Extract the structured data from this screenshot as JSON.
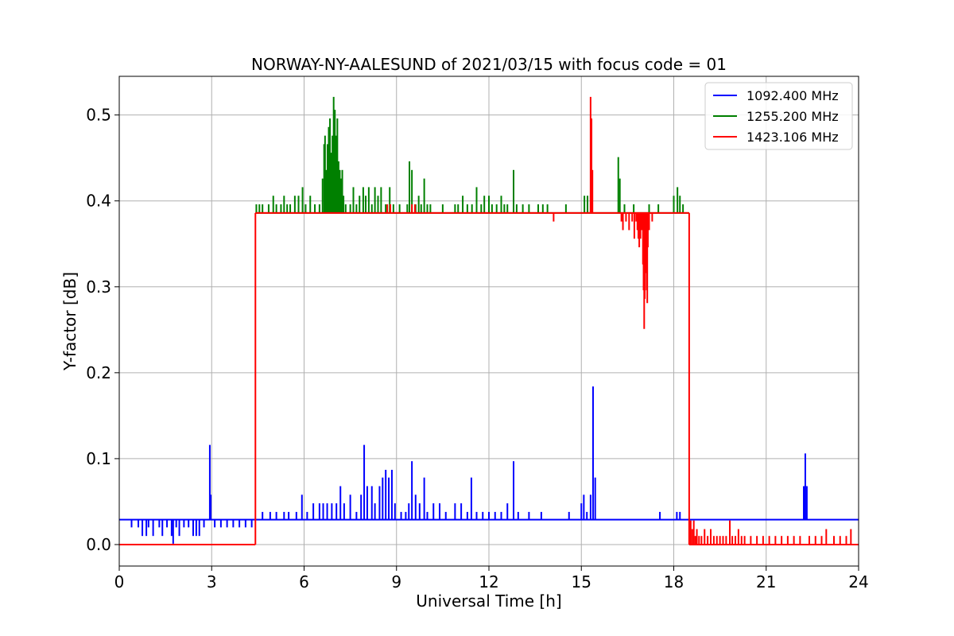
{
  "chart_data": {
    "type": "line",
    "title": "NORWAY-NY-AALESUND of 2021/03/15 with focus code = 01",
    "xlabel": "Universal Time [h]",
    "ylabel": "Y-factor [dB]",
    "xlim": [
      0,
      24
    ],
    "ylim": [
      -0.025,
      0.545
    ],
    "xticks": [
      0,
      3,
      6,
      9,
      12,
      15,
      18,
      21,
      24
    ],
    "xtick_labels": [
      "0",
      "3",
      "6",
      "9",
      "12",
      "15",
      "18",
      "21",
      "24"
    ],
    "yticks": [
      0.0,
      0.1,
      0.2,
      0.3,
      0.4,
      0.5
    ],
    "ytick_labels": [
      "0.0",
      "0.1",
      "0.2",
      "0.3",
      "0.4",
      "0.5"
    ],
    "grid": true,
    "legend_position": "top-right",
    "series": [
      {
        "name": "1092.400 MHz",
        "color": "#0000ff",
        "baseline": 0.029,
        "baseline_segments": [
          [
            0.0,
            4.42
          ],
          [
            4.42,
            24.0
          ]
        ],
        "baseline_values": [
          0.029,
          0.029
        ],
        "spikes": [
          [
            0.4,
            0.02
          ],
          [
            0.62,
            0.02
          ],
          [
            0.75,
            0.01
          ],
          [
            0.88,
            0.01
          ],
          [
            0.95,
            0.02
          ],
          [
            1.1,
            0.01
          ],
          [
            1.3,
            0.02
          ],
          [
            1.4,
            0.01
          ],
          [
            1.55,
            0.02
          ],
          [
            1.7,
            0.01
          ],
          [
            1.75,
            0.001
          ],
          [
            1.85,
            0.02
          ],
          [
            1.95,
            0.01
          ],
          [
            2.1,
            0.02
          ],
          [
            2.25,
            0.02
          ],
          [
            2.4,
            0.01
          ],
          [
            2.5,
            0.01
          ],
          [
            2.6,
            0.01
          ],
          [
            2.75,
            0.02
          ],
          [
            2.94,
            0.116
          ],
          [
            2.97,
            0.058
          ],
          [
            3.1,
            0.02
          ],
          [
            3.3,
            0.02
          ],
          [
            3.5,
            0.02
          ],
          [
            3.7,
            0.02
          ],
          [
            3.9,
            0.02
          ],
          [
            4.1,
            0.02
          ],
          [
            4.3,
            0.02
          ],
          [
            4.65,
            0.038
          ],
          [
            4.9,
            0.038
          ],
          [
            5.1,
            0.038
          ],
          [
            5.35,
            0.038
          ],
          [
            5.5,
            0.038
          ],
          [
            5.75,
            0.038
          ],
          [
            5.93,
            0.058
          ],
          [
            6.1,
            0.038
          ],
          [
            6.3,
            0.048
          ],
          [
            6.5,
            0.048
          ],
          [
            6.62,
            0.048
          ],
          [
            6.75,
            0.048
          ],
          [
            6.9,
            0.048
          ],
          [
            7.05,
            0.048
          ],
          [
            7.18,
            0.068
          ],
          [
            7.3,
            0.048
          ],
          [
            7.5,
            0.058
          ],
          [
            7.7,
            0.038
          ],
          [
            7.85,
            0.058
          ],
          [
            7.95,
            0.116
          ],
          [
            8.05,
            0.068
          ],
          [
            8.2,
            0.068
          ],
          [
            8.3,
            0.048
          ],
          [
            8.45,
            0.068
          ],
          [
            8.55,
            0.078
          ],
          [
            8.65,
            0.087
          ],
          [
            8.75,
            0.078
          ],
          [
            8.85,
            0.087
          ],
          [
            8.95,
            0.048
          ],
          [
            9.15,
            0.038
          ],
          [
            9.3,
            0.038
          ],
          [
            9.4,
            0.048
          ],
          [
            9.5,
            0.097
          ],
          [
            9.62,
            0.058
          ],
          [
            9.75,
            0.048
          ],
          [
            9.9,
            0.078
          ],
          [
            10.0,
            0.038
          ],
          [
            10.2,
            0.048
          ],
          [
            10.4,
            0.048
          ],
          [
            10.6,
            0.038
          ],
          [
            10.9,
            0.048
          ],
          [
            11.1,
            0.048
          ],
          [
            11.3,
            0.038
          ],
          [
            11.43,
            0.078
          ],
          [
            11.6,
            0.038
          ],
          [
            11.8,
            0.038
          ],
          [
            12.0,
            0.038
          ],
          [
            12.2,
            0.038
          ],
          [
            12.4,
            0.038
          ],
          [
            12.6,
            0.048
          ],
          [
            12.8,
            0.097
          ],
          [
            12.95,
            0.038
          ],
          [
            13.3,
            0.038
          ],
          [
            13.7,
            0.038
          ],
          [
            14.6,
            0.038
          ],
          [
            15.0,
            0.048
          ],
          [
            15.08,
            0.058
          ],
          [
            15.18,
            0.038
          ],
          [
            15.3,
            0.058
          ],
          [
            15.38,
            0.184
          ],
          [
            15.45,
            0.078
          ],
          [
            17.55,
            0.038
          ],
          [
            18.1,
            0.038
          ],
          [
            18.2,
            0.038
          ],
          [
            22.22,
            0.068
          ],
          [
            22.27,
            0.106
          ],
          [
            22.32,
            0.068
          ]
        ]
      },
      {
        "name": "1255.200 MHz",
        "color": "#008000",
        "baseline": 0.386,
        "baseline_segments": [
          [
            4.42,
            18.5
          ]
        ],
        "baseline_values": [
          0.386
        ],
        "spikes": [
          [
            4.45,
            0.396
          ],
          [
            4.55,
            0.396
          ],
          [
            4.65,
            0.396
          ],
          [
            4.85,
            0.396
          ],
          [
            5.0,
            0.406
          ],
          [
            5.1,
            0.396
          ],
          [
            5.25,
            0.396
          ],
          [
            5.35,
            0.406
          ],
          [
            5.45,
            0.396
          ],
          [
            5.55,
            0.396
          ],
          [
            5.7,
            0.406
          ],
          [
            5.82,
            0.406
          ],
          [
            5.95,
            0.416
          ],
          [
            6.05,
            0.396
          ],
          [
            6.2,
            0.406
          ],
          [
            6.35,
            0.396
          ],
          [
            6.5,
            0.396
          ],
          [
            6.6,
            0.426
          ],
          [
            6.65,
            0.466
          ],
          [
            6.68,
            0.476
          ],
          [
            6.72,
            0.436
          ],
          [
            6.76,
            0.466
          ],
          [
            6.8,
            0.486
          ],
          [
            6.84,
            0.496
          ],
          [
            6.88,
            0.456
          ],
          [
            6.92,
            0.476
          ],
          [
            6.96,
            0.521
          ],
          [
            7.0,
            0.506
          ],
          [
            7.04,
            0.476
          ],
          [
            7.08,
            0.496
          ],
          [
            7.12,
            0.446
          ],
          [
            7.16,
            0.436
          ],
          [
            7.2,
            0.426
          ],
          [
            7.24,
            0.436
          ],
          [
            7.28,
            0.406
          ],
          [
            7.35,
            0.396
          ],
          [
            7.5,
            0.396
          ],
          [
            7.6,
            0.416
          ],
          [
            7.7,
            0.396
          ],
          [
            7.8,
            0.406
          ],
          [
            7.92,
            0.416
          ],
          [
            8.0,
            0.406
          ],
          [
            8.1,
            0.416
          ],
          [
            8.2,
            0.396
          ],
          [
            8.3,
            0.416
          ],
          [
            8.4,
            0.406
          ],
          [
            8.5,
            0.416
          ],
          [
            8.65,
            0.396
          ],
          [
            8.78,
            0.416
          ],
          [
            8.9,
            0.396
          ],
          [
            9.1,
            0.396
          ],
          [
            9.35,
            0.396
          ],
          [
            9.42,
            0.446
          ],
          [
            9.5,
            0.436
          ],
          [
            9.62,
            0.396
          ],
          [
            9.72,
            0.406
          ],
          [
            9.8,
            0.396
          ],
          [
            9.9,
            0.426
          ],
          [
            10.0,
            0.396
          ],
          [
            10.1,
            0.396
          ],
          [
            10.5,
            0.396
          ],
          [
            10.9,
            0.396
          ],
          [
            11.0,
            0.396
          ],
          [
            11.15,
            0.406
          ],
          [
            11.3,
            0.396
          ],
          [
            11.45,
            0.396
          ],
          [
            11.6,
            0.416
          ],
          [
            11.75,
            0.396
          ],
          [
            11.85,
            0.406
          ],
          [
            12.0,
            0.406
          ],
          [
            12.1,
            0.396
          ],
          [
            12.25,
            0.396
          ],
          [
            12.4,
            0.406
          ],
          [
            12.5,
            0.396
          ],
          [
            12.6,
            0.396
          ],
          [
            12.8,
            0.436
          ],
          [
            12.9,
            0.396
          ],
          [
            13.1,
            0.396
          ],
          [
            13.3,
            0.396
          ],
          [
            13.6,
            0.396
          ],
          [
            13.75,
            0.396
          ],
          [
            13.9,
            0.396
          ],
          [
            14.5,
            0.396
          ],
          [
            15.1,
            0.406
          ],
          [
            15.2,
            0.406
          ],
          [
            15.3,
            0.406
          ],
          [
            16.2,
            0.451
          ],
          [
            16.25,
            0.426
          ],
          [
            16.4,
            0.396
          ],
          [
            16.7,
            0.396
          ],
          [
            17.2,
            0.396
          ],
          [
            17.5,
            0.396
          ],
          [
            18.0,
            0.406
          ],
          [
            18.12,
            0.416
          ],
          [
            18.2,
            0.406
          ],
          [
            18.3,
            0.396
          ]
        ]
      },
      {
        "name": "1423.106 MHz",
        "color": "#ff0000",
        "baseline": 0.386,
        "baseline_segments": [
          [
            0.0,
            4.42
          ],
          [
            4.42,
            18.5
          ],
          [
            18.5,
            24.0
          ]
        ],
        "baseline_values": [
          0.0,
          0.386,
          0.0
        ],
        "spikes": [
          [
            8.7,
            0.396
          ],
          [
            8.8,
            0.396
          ],
          [
            9.5,
            0.396
          ],
          [
            9.6,
            0.396
          ],
          [
            14.1,
            0.376
          ],
          [
            15.3,
            0.521
          ],
          [
            15.33,
            0.496
          ],
          [
            15.36,
            0.436
          ],
          [
            16.3,
            0.376
          ],
          [
            16.35,
            0.366
          ],
          [
            16.45,
            0.376
          ],
          [
            16.55,
            0.366
          ],
          [
            16.65,
            0.376
          ],
          [
            16.72,
            0.356
          ],
          [
            16.78,
            0.376
          ],
          [
            16.82,
            0.366
          ],
          [
            16.85,
            0.356
          ],
          [
            16.88,
            0.346
          ],
          [
            16.92,
            0.356
          ],
          [
            16.96,
            0.366
          ],
          [
            17.0,
            0.326
          ],
          [
            17.02,
            0.296
          ],
          [
            17.04,
            0.251
          ],
          [
            17.06,
            0.286
          ],
          [
            17.08,
            0.316
          ],
          [
            17.1,
            0.356
          ],
          [
            17.12,
            0.296
          ],
          [
            17.14,
            0.281
          ],
          [
            17.16,
            0.346
          ],
          [
            17.2,
            0.366
          ],
          [
            17.3,
            0.376
          ]
        ],
        "tail_spikes": [
          [
            18.55,
            0.028
          ],
          [
            18.6,
            0.018
          ],
          [
            18.65,
            0.028
          ],
          [
            18.7,
            0.01
          ],
          [
            18.75,
            0.018
          ],
          [
            18.82,
            0.01
          ],
          [
            18.9,
            0.01
          ],
          [
            19.0,
            0.018
          ],
          [
            19.1,
            0.01
          ],
          [
            19.2,
            0.018
          ],
          [
            19.3,
            0.01
          ],
          [
            19.4,
            0.01
          ],
          [
            19.5,
            0.01
          ],
          [
            19.6,
            0.01
          ],
          [
            19.7,
            0.01
          ],
          [
            19.82,
            0.028
          ],
          [
            19.9,
            0.01
          ],
          [
            20.0,
            0.01
          ],
          [
            20.1,
            0.018
          ],
          [
            20.2,
            0.01
          ],
          [
            20.3,
            0.01
          ],
          [
            20.5,
            0.01
          ],
          [
            20.7,
            0.01
          ],
          [
            20.9,
            0.01
          ],
          [
            21.1,
            0.01
          ],
          [
            21.3,
            0.01
          ],
          [
            21.5,
            0.01
          ],
          [
            21.7,
            0.01
          ],
          [
            21.9,
            0.01
          ],
          [
            22.1,
            0.01
          ],
          [
            22.4,
            0.01
          ],
          [
            22.6,
            0.01
          ],
          [
            22.8,
            0.01
          ],
          [
            22.95,
            0.018
          ],
          [
            23.2,
            0.01
          ],
          [
            23.4,
            0.01
          ],
          [
            23.6,
            0.01
          ],
          [
            23.75,
            0.018
          ]
        ]
      }
    ],
    "step_edges": [
      {
        "x": 4.42,
        "y0": 0.0,
        "y1": 0.386,
        "color": "#ff0000"
      },
      {
        "x": 18.5,
        "y0": 0.0,
        "y1": 0.386,
        "color": "#ff0000"
      }
    ]
  }
}
